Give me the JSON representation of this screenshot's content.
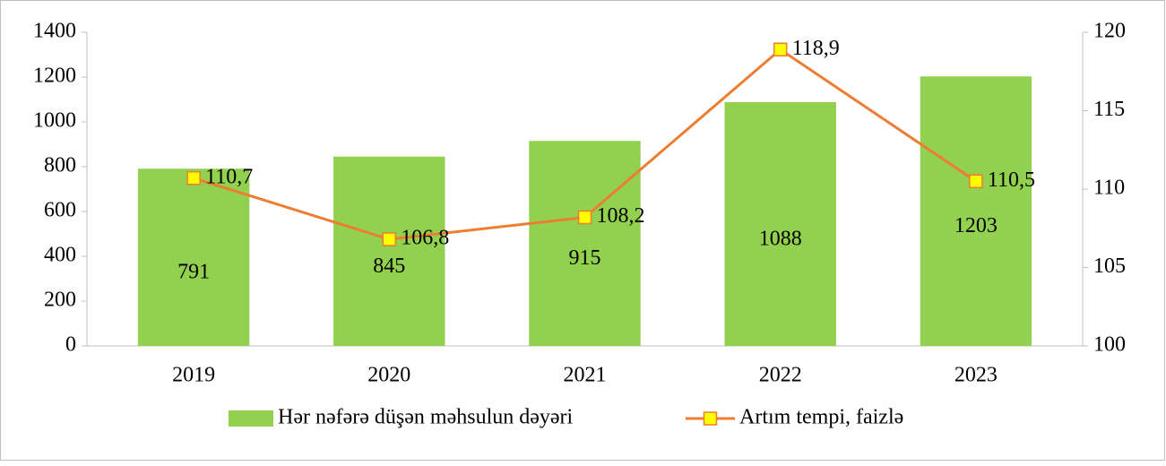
{
  "chart_data": {
    "type": "bar_line",
    "categories": [
      "2019",
      "2020",
      "2021",
      "2022",
      "2023"
    ],
    "series": [
      {
        "name": "Hər nəfərə düşən məhsulun dəyəri",
        "type": "bar",
        "color": "#92d050",
        "values": [
          791,
          845,
          915,
          1088,
          1203
        ]
      },
      {
        "name": "Artım tempi, faizlə",
        "type": "line",
        "axis": "y2",
        "color": "#ed7d31",
        "marker_color": "#ffff00",
        "values": [
          110.7,
          106.8,
          108.2,
          118.9,
          110.5
        ],
        "value_labels": [
          "110,7",
          "106,8",
          "108,2",
          "118,9",
          "110,5"
        ]
      }
    ],
    "ylim": [
      0,
      1400
    ],
    "yticks": [
      0,
      200,
      400,
      600,
      800,
      1000,
      1200,
      1400
    ],
    "y2lim": [
      100,
      120
    ],
    "y2ticks": [
      100,
      105,
      110,
      115,
      120
    ],
    "legend": "bottom"
  }
}
